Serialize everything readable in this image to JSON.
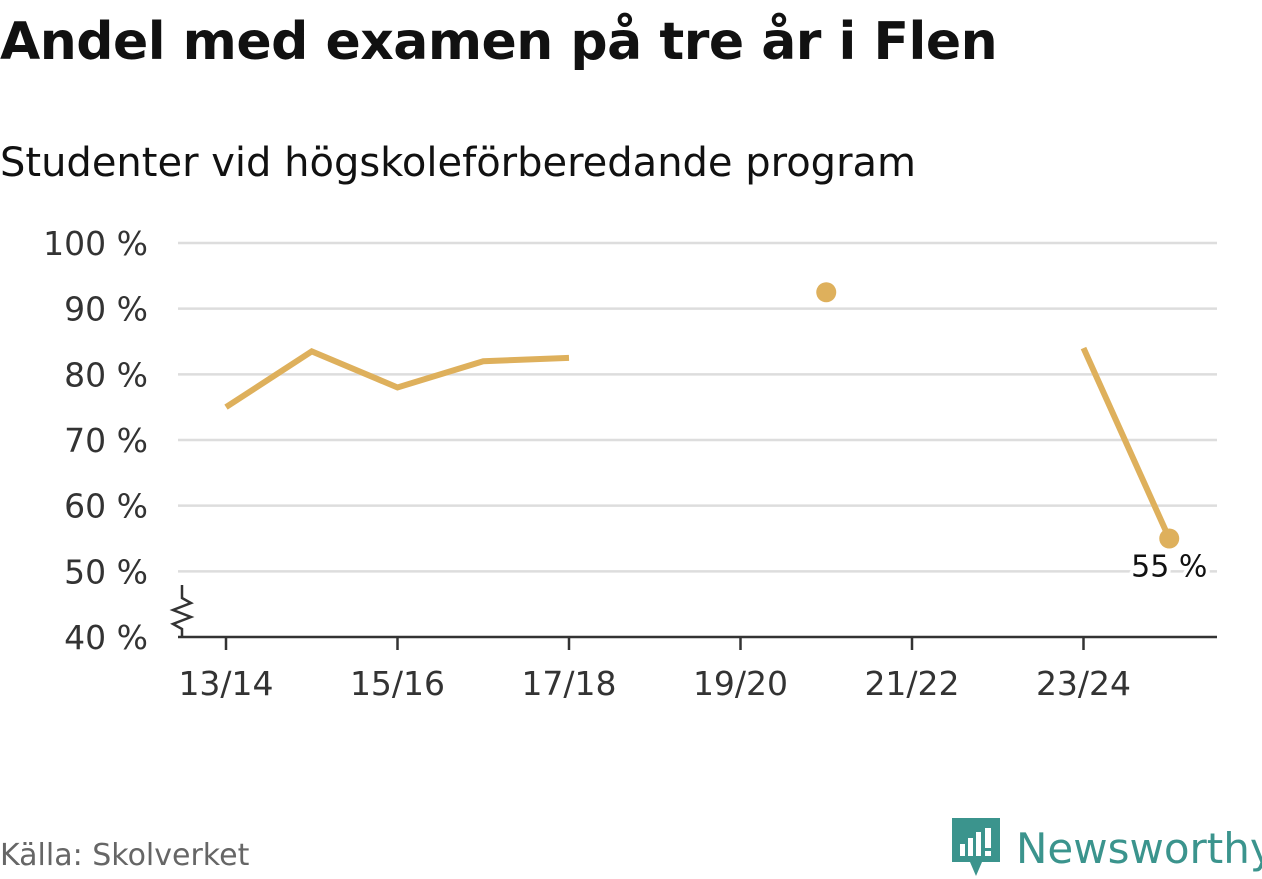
{
  "header": {
    "title": "Andel med examen på tre år i Flen",
    "subtitle": "Studenter vid högskoleförberedande program"
  },
  "chart_data": {
    "type": "line",
    "title": "Andel med examen på tre år i Flen",
    "subtitle": "Studenter vid högskoleförberedande program",
    "x": [
      "13/14",
      "14/15",
      "15/16",
      "16/17",
      "17/18",
      "18/19",
      "19/20",
      "20/21",
      "21/22",
      "22/23",
      "23/24",
      "24/25"
    ],
    "series": [
      {
        "values": [
          75,
          83.5,
          78,
          82,
          82.5,
          null,
          null,
          92.5,
          null,
          null,
          84,
          55
        ]
      }
    ],
    "x_tick_labels": [
      "13/14",
      "15/16",
      "17/18",
      "19/20",
      "21/22",
      "23/24"
    ],
    "y_tick_labels": [
      "40 %",
      "50 %",
      "60 %",
      "70 %",
      "80 %",
      "90 %",
      "100 %"
    ],
    "y_ticks": [
      40,
      50,
      60,
      70,
      80,
      90,
      100
    ],
    "ylim": [
      40,
      100
    ],
    "y_axis_broken": true,
    "grid": true,
    "end_label": "55 %",
    "color": "#deb05c"
  },
  "footer": {
    "source": "Källa: Skolverket",
    "brand": "Newsworthy",
    "brand_icon": "newsworthy-logo-icon",
    "brand_color": "#3b948d"
  }
}
